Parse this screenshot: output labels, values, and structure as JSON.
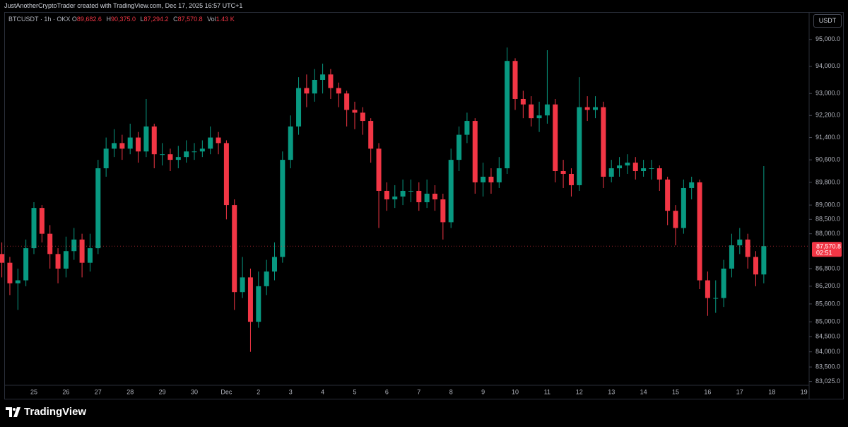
{
  "chart_data": {
    "type": "candlestick",
    "attribution": "JustAnotherCryptoTrader created with TradingView.com, Dec 17, 2025 16:57 UTC+1",
    "symbol": "BTCUSDT · 1h · OKX",
    "legend": {
      "o_label": "O",
      "o": {
        "value": 89682.6,
        "label": "89,682.6"
      },
      "h_label": "H",
      "h": {
        "value": 90375.0,
        "label": "90,375.0"
      },
      "l_label": "L",
      "l": {
        "value": 87294.2,
        "label": "87,294.2"
      },
      "c_label": "C",
      "c": {
        "value": 87570.8,
        "label": "87,570.8"
      },
      "vol_label": "Vol",
      "vol": {
        "value": 1430,
        "label": "1.43 K"
      }
    },
    "currency_button": "USDT",
    "brand": "TradingView",
    "last_price": {
      "value": 87570.8,
      "label": "87,570.8"
    },
    "countdown": "02:51",
    "up_color": "#089981",
    "down_color": "#f23645",
    "log_scale": true,
    "grid": false,
    "ylim": [
      82900,
      95900
    ],
    "yticks": [
      {
        "value": 95000,
        "label": "95,000.0"
      },
      {
        "value": 94000,
        "label": "94,000.0"
      },
      {
        "value": 93000,
        "label": "93,000.0"
      },
      {
        "value": 92200,
        "label": "92,200.0"
      },
      {
        "value": 91400,
        "label": "91,400.0"
      },
      {
        "value": 90600,
        "label": "90,600.0"
      },
      {
        "value": 89800,
        "label": "89,800.0"
      },
      {
        "value": 89000,
        "label": "89,000.0"
      },
      {
        "value": 88500,
        "label": "88,500.0"
      },
      {
        "value": 88000,
        "label": "88,000.0"
      },
      {
        "value": 86800,
        "label": "86,800.0"
      },
      {
        "value": 86200,
        "label": "86,200.0"
      },
      {
        "value": 85600,
        "label": "85,600.0"
      },
      {
        "value": 85000,
        "label": "85,000.0"
      },
      {
        "value": 84500,
        "label": "84,500.0"
      },
      {
        "value": 84000,
        "label": "84,000.0"
      },
      {
        "value": 83500,
        "label": "83,500.0"
      },
      {
        "value": 83025,
        "label": "83,025.0"
      }
    ],
    "categories": [
      null,
      null,
      null,
      null,
      "25",
      null,
      null,
      null,
      "26",
      null,
      null,
      null,
      "27",
      null,
      null,
      null,
      "28",
      null,
      null,
      null,
      "29",
      null,
      null,
      null,
      "30",
      null,
      null,
      null,
      "Dec",
      null,
      null,
      null,
      "2",
      null,
      null,
      null,
      "3",
      null,
      null,
      null,
      "4",
      null,
      null,
      null,
      "5",
      null,
      null,
      null,
      "6",
      null,
      null,
      null,
      "7",
      null,
      null,
      null,
      "8",
      null,
      null,
      null,
      "9",
      null,
      null,
      null,
      "10",
      null,
      null,
      null,
      "11",
      null,
      null,
      null,
      "12",
      null,
      null,
      null,
      "13",
      null,
      null,
      null,
      "14",
      null,
      null,
      null,
      "15",
      null,
      null,
      null,
      "16",
      null,
      null,
      null,
      "17",
      null,
      null,
      null,
      "18",
      null,
      null,
      null,
      "19"
    ],
    "open": [
      87300,
      87000,
      86300,
      86400,
      87500,
      88900,
      88000,
      87300,
      86800,
      87400,
      87800,
      87000,
      87500,
      90300,
      91000,
      91200,
      91000,
      91400,
      90900,
      91800,
      90800,
      90800,
      90600,
      90700,
      90900,
      90900,
      91000,
      91400,
      91200,
      89000,
      86000,
      86500,
      85000,
      86200,
      86700,
      87200,
      90600,
      91800,
      93200,
      93000,
      93500,
      93700,
      93200,
      93000,
      92400,
      92300,
      92000,
      91000,
      89500,
      89200,
      89300,
      89500,
      89500,
      89100,
      89400,
      89200,
      88400,
      90600,
      91500,
      92000,
      89800,
      90000,
      89800,
      90300,
      94200,
      92800,
      92600,
      92100,
      92200,
      92600,
      90200,
      90100,
      89700,
      92500,
      92400,
      92500,
      90000,
      90300,
      90400,
      90500,
      90200,
      90300,
      90300,
      89900,
      88800,
      88200,
      89600,
      89800,
      86400,
      85800,
      85800,
      86800,
      87600,
      87800,
      87200,
      86600,
      null,
      null,
      null,
      null,
      null
    ],
    "high": [
      87700,
      87200,
      86800,
      87800,
      89100,
      89000,
      88300,
      87500,
      87900,
      88200,
      88000,
      88000,
      90600,
      91400,
      91700,
      91500,
      91900,
      91600,
      92800,
      91900,
      91200,
      91000,
      91100,
      91300,
      91200,
      91300,
      91800,
      91600,
      91300,
      89200,
      87200,
      86800,
      86700,
      87100,
      87700,
      90900,
      92200,
      93600,
      93700,
      93900,
      94100,
      93900,
      93400,
      93100,
      92700,
      92500,
      92100,
      91200,
      89800,
      89700,
      89900,
      89900,
      89800,
      89900,
      89700,
      89400,
      91000,
      91800,
      92300,
      92100,
      90500,
      90300,
      90700,
      94700,
      94300,
      93100,
      92900,
      92700,
      94600,
      92800,
      90600,
      90300,
      93600,
      92900,
      92900,
      92700,
      90600,
      90700,
      90800,
      90700,
      90600,
      90600,
      90400,
      90000,
      89000,
      89900,
      90000,
      89900,
      86700,
      86400,
      87100,
      88000,
      88200,
      88000,
      87400,
      90375,
      null,
      null,
      null,
      null,
      null
    ],
    "low": [
      86500,
      85900,
      85400,
      86200,
      87300,
      87700,
      86800,
      86300,
      86500,
      87100,
      86500,
      86700,
      87300,
      90000,
      90700,
      90600,
      90800,
      90500,
      90700,
      90300,
      90400,
      90200,
      90300,
      90500,
      90600,
      90700,
      90800,
      90800,
      88500,
      85400,
      85800,
      84000,
      84800,
      85900,
      86400,
      87000,
      90300,
      91500,
      92500,
      92700,
      93000,
      92800,
      92500,
      91800,
      91700,
      91500,
      90500,
      88200,
      88800,
      88900,
      89000,
      89100,
      88800,
      88900,
      88800,
      87800,
      88200,
      90200,
      91200,
      89400,
      89300,
      89400,
      89600,
      90100,
      92400,
      92100,
      91800,
      91600,
      91900,
      89800,
      89600,
      89300,
      89500,
      92000,
      92100,
      89600,
      89800,
      90000,
      90100,
      89900,
      90000,
      89900,
      89500,
      88300,
      87600,
      88000,
      89200,
      86100,
      85200,
      85300,
      85500,
      86500,
      87300,
      86800,
      86200,
      86300,
      null,
      null,
      null,
      null,
      null
    ],
    "close": [
      87000,
      86300,
      86400,
      87500,
      88900,
      88000,
      87300,
      86800,
      87400,
      87800,
      87000,
      87500,
      90300,
      91000,
      91200,
      91000,
      91400,
      90900,
      91800,
      90800,
      90800,
      90600,
      90700,
      90900,
      90900,
      91000,
      91400,
      91200,
      89000,
      86000,
      86500,
      85000,
      86200,
      86700,
      87200,
      90600,
      91800,
      93200,
      93000,
      93500,
      93700,
      93200,
      93000,
      92400,
      92300,
      92000,
      91000,
      89500,
      89200,
      89300,
      89500,
      89500,
      89100,
      89400,
      89200,
      88400,
      90600,
      91500,
      92000,
      89800,
      90000,
      89800,
      90300,
      94200,
      92800,
      92600,
      92100,
      92200,
      92600,
      90200,
      90100,
      89700,
      92500,
      92400,
      92500,
      90000,
      90300,
      90400,
      90500,
      90200,
      90300,
      90300,
      89900,
      88800,
      88200,
      89600,
      89800,
      86400,
      85800,
      85800,
      86800,
      87600,
      87800,
      87200,
      86600,
      87570.8,
      null,
      null,
      null,
      null,
      null
    ]
  }
}
